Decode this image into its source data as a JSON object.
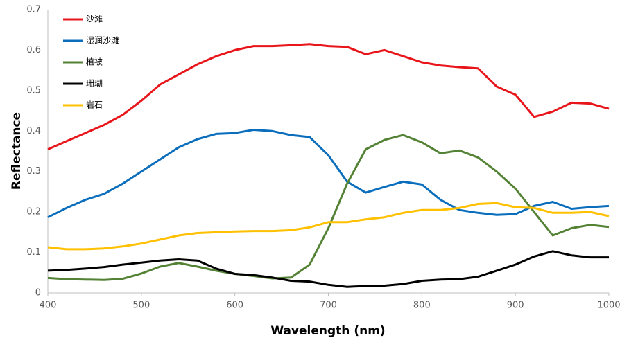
{
  "chart_data": {
    "type": "line",
    "xlabel": "Wavelength (nm)",
    "ylabel": "Reflectance",
    "x": [
      400,
      420,
      440,
      460,
      480,
      500,
      520,
      540,
      560,
      580,
      600,
      620,
      640,
      660,
      680,
      700,
      720,
      740,
      760,
      780,
      800,
      820,
      840,
      860,
      880,
      900,
      920,
      940,
      960,
      980,
      1000
    ],
    "series": [
      {
        "name": "沙滩",
        "color": "#e8161b",
        "values": [
          0.355,
          0.375,
          0.395,
          0.415,
          0.44,
          0.475,
          0.515,
          0.54,
          0.565,
          0.585,
          0.6,
          0.61,
          0.61,
          0.612,
          0.615,
          0.61,
          0.608,
          0.59,
          0.6,
          0.585,
          0.57,
          0.562,
          0.558,
          0.555,
          0.51,
          0.49,
          0.435,
          0.448,
          0.47,
          0.468,
          0.455
        ]
      },
      {
        "name": "湿润沙滩",
        "color": "#0a6ebd",
        "values": [
          0.187,
          0.21,
          0.23,
          0.245,
          0.27,
          0.3,
          0.33,
          0.36,
          0.38,
          0.393,
          0.395,
          0.403,
          0.4,
          0.39,
          0.385,
          0.34,
          0.275,
          0.248,
          0.262,
          0.275,
          0.268,
          0.23,
          0.205,
          0.198,
          0.193,
          0.195,
          0.215,
          0.225,
          0.208,
          0.212,
          0.215
        ]
      },
      {
        "name": "植被",
        "color": "#548235",
        "values": [
          0.037,
          0.034,
          0.033,
          0.032,
          0.035,
          0.048,
          0.065,
          0.074,
          0.065,
          0.055,
          0.047,
          0.042,
          0.036,
          0.038,
          0.07,
          0.16,
          0.27,
          0.355,
          0.378,
          0.39,
          0.372,
          0.345,
          0.352,
          0.335,
          0.3,
          0.258,
          0.2,
          0.142,
          0.16,
          0.168,
          0.163
        ]
      },
      {
        "name": "珊瑚",
        "color": "#000000",
        "values": [
          0.055,
          0.057,
          0.06,
          0.064,
          0.07,
          0.075,
          0.08,
          0.083,
          0.08,
          0.06,
          0.047,
          0.044,
          0.038,
          0.03,
          0.028,
          0.02,
          0.015,
          0.017,
          0.018,
          0.022,
          0.03,
          0.033,
          0.034,
          0.04,
          0.055,
          0.07,
          0.09,
          0.103,
          0.093,
          0.088,
          0.088
        ]
      },
      {
        "name": "岩石",
        "color": "#ffc000",
        "values": [
          0.113,
          0.108,
          0.108,
          0.11,
          0.115,
          0.122,
          0.132,
          0.142,
          0.148,
          0.15,
          0.152,
          0.153,
          0.153,
          0.155,
          0.162,
          0.175,
          0.175,
          0.182,
          0.187,
          0.198,
          0.205,
          0.205,
          0.21,
          0.22,
          0.222,
          0.212,
          0.21,
          0.198,
          0.198,
          0.2,
          0.19
        ]
      }
    ],
    "xlim": [
      400,
      1000
    ],
    "xticks": [
      400,
      500,
      600,
      700,
      800,
      900,
      1000
    ],
    "ylim": [
      0,
      0.7
    ],
    "yticks": [
      0,
      0.1,
      0.2,
      0.3,
      0.4,
      0.5,
      0.6,
      0.7
    ],
    "grid": false,
    "legend": "top-left"
  }
}
